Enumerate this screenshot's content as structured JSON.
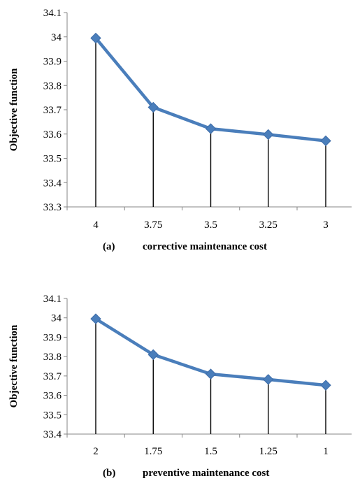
{
  "chart_data": [
    {
      "type": "line",
      "panel_tag": "(a)",
      "xlabel": "corrective maintenance cost",
      "ylabel": "Objective function",
      "categories": [
        "4",
        "3.75",
        "3.5",
        "3.25",
        "3"
      ],
      "values": [
        33.995,
        33.71,
        33.622,
        33.598,
        33.572
      ],
      "ylim": [
        33.3,
        34.1
      ],
      "yticks": [
        "33.3",
        "33.4",
        "33.5",
        "33.6",
        "33.7",
        "33.8",
        "33.9",
        "34",
        "34.1"
      ],
      "drop_lines": true,
      "grid": false,
      "line_color": "#4a7ebb"
    },
    {
      "type": "line",
      "panel_tag": "(b)",
      "xlabel": "preventive maintenance cost",
      "ylabel": "Objective function",
      "categories": [
        "2",
        "1.75",
        "1.5",
        "1.25",
        "1"
      ],
      "values": [
        33.995,
        33.81,
        33.71,
        33.682,
        33.652
      ],
      "ylim": [
        33.4,
        34.1
      ],
      "yticks": [
        "33.4",
        "33.5",
        "33.6",
        "33.7",
        "33.8",
        "33.9",
        "34",
        "34.1"
      ],
      "drop_lines": true,
      "grid": false,
      "line_color": "#4a7ebb"
    }
  ]
}
